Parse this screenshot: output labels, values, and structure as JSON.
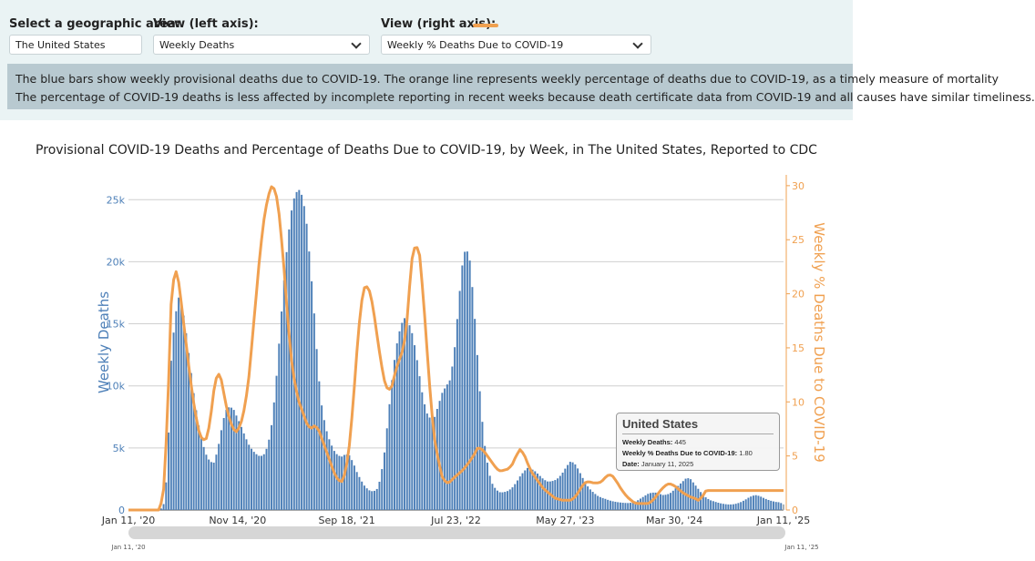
{
  "controls": {
    "geo_label": "Select a geographic area:",
    "geo_value": "The United States",
    "left_label": "View (left axis):",
    "left_value": "Weekly Deaths",
    "right_label": "View (right axis):",
    "right_value": "Weekly % Deaths Due to COVID-19",
    "line_color": "#f0a050"
  },
  "note": {
    "line1": "The blue bars show weekly provisional deaths due to COVID-19. The orange line represents weekly percentage of deaths due to COVID-19, as a timely measure of mortality",
    "line2": "The percentage of COVID-19 deaths is less affected by incomplete reporting in recent weeks because death certificate data from COVID-19 and all causes have similar timeliness."
  },
  "tooltip": {
    "title": "United States",
    "deaths_label": "Weekly Deaths:",
    "deaths_value": "445",
    "pct_label": "Weekly % Deaths Due to COVID-19:",
    "pct_value": "1.80",
    "date_label": "Date:",
    "date_value": "January 11, 2025"
  },
  "chart_data": {
    "type": "bar",
    "title": "Provisional COVID-19 Deaths and Percentage of Deaths Due to COVID-19, by Week, in The United States, Reported to CDC",
    "ylabel": "Weekly Deaths",
    "y2label": "Weekly % Deaths Due to COVID-19",
    "ylim": [
      0,
      27000
    ],
    "y2lim": [
      0,
      31
    ],
    "yticks": [
      0,
      5000,
      10000,
      15000,
      20000,
      25000
    ],
    "ytick_labels": [
      "0",
      "5k",
      "10k",
      "15k",
      "20k",
      "25k"
    ],
    "y2ticks": [
      0,
      5,
      10,
      15,
      20,
      25,
      30
    ],
    "xtick_labels": [
      "Jan 11, '20",
      "Nov 14, '20",
      "Sep 18, '21",
      "Jul 23, '22",
      "May 27, '23",
      "Mar 30, '24",
      "Jan 11, '25"
    ],
    "range_labels": [
      "Jan 11, '20",
      "Jan 11, '25"
    ],
    "grid": true,
    "bar_color": "#4e80b8",
    "line_color": "#f0a050",
    "weeks": 262,
    "deaths_keyframes": [
      [
        0,
        0
      ],
      [
        8,
        0
      ],
      [
        9,
        300
      ],
      [
        10,
        3000
      ],
      [
        11,
        12000
      ],
      [
        12,
        15500
      ],
      [
        13,
        17200
      ],
      [
        14,
        16200
      ],
      [
        15,
        14000
      ],
      [
        16,
        11500
      ],
      [
        17,
        9000
      ],
      [
        18,
        7000
      ],
      [
        19,
        5500
      ],
      [
        20,
        4500
      ],
      [
        21,
        3900
      ],
      [
        22,
        3800
      ],
      [
        23,
        4800
      ],
      [
        24,
        6500
      ],
      [
        25,
        8000
      ],
      [
        26,
        8300
      ],
      [
        27,
        8200
      ],
      [
        28,
        7500
      ],
      [
        29,
        6800
      ],
      [
        30,
        6000
      ],
      [
        31,
        5300
      ],
      [
        32,
        4800
      ],
      [
        33,
        4500
      ],
      [
        34,
        4300
      ],
      [
        35,
        4500
      ],
      [
        36,
        5200
      ],
      [
        37,
        7000
      ],
      [
        38,
        10000
      ],
      [
        39,
        14000
      ],
      [
        40,
        18000
      ],
      [
        41,
        21500
      ],
      [
        42,
        24000
      ],
      [
        43,
        25500
      ],
      [
        44,
        25800
      ],
      [
        45,
        25200
      ],
      [
        46,
        23000
      ],
      [
        47,
        19500
      ],
      [
        48,
        15500
      ],
      [
        49,
        11000
      ],
      [
        50,
        8000
      ],
      [
        51,
        6500
      ],
      [
        52,
        5500
      ],
      [
        53,
        4800
      ],
      [
        54,
        4400
      ],
      [
        55,
        4300
      ],
      [
        56,
        4500
      ],
      [
        57,
        4400
      ],
      [
        58,
        3800
      ],
      [
        59,
        3000
      ],
      [
        60,
        2400
      ],
      [
        61,
        1900
      ],
      [
        62,
        1600
      ],
      [
        63,
        1500
      ],
      [
        64,
        1600
      ],
      [
        65,
        2500
      ],
      [
        66,
        4500
      ],
      [
        67,
        7500
      ],
      [
        68,
        10500
      ],
      [
        69,
        13000
      ],
      [
        70,
        14500
      ],
      [
        71,
        15500
      ],
      [
        72,
        15300
      ],
      [
        73,
        14500
      ],
      [
        74,
        13000
      ],
      [
        75,
        11000
      ],
      [
        76,
        9000
      ],
      [
        77,
        7800
      ],
      [
        78,
        7300
      ],
      [
        79,
        7500
      ],
      [
        80,
        8500
      ],
      [
        81,
        9500
      ],
      [
        82,
        10000
      ],
      [
        83,
        10500
      ],
      [
        84,
        12500
      ],
      [
        85,
        16000
      ],
      [
        86,
        19500
      ],
      [
        87,
        21200
      ],
      [
        88,
        20300
      ],
      [
        89,
        17000
      ],
      [
        90,
        12500
      ],
      [
        91,
        8000
      ],
      [
        92,
        5000
      ],
      [
        93,
        3000
      ],
      [
        94,
        2000
      ],
      [
        95,
        1600
      ],
      [
        96,
        1400
      ],
      [
        97,
        1450
      ],
      [
        98,
        1550
      ],
      [
        99,
        1800
      ],
      [
        100,
        2200
      ],
      [
        101,
        2700
      ],
      [
        102,
        3100
      ],
      [
        103,
        3400
      ],
      [
        104,
        3300
      ],
      [
        105,
        3100
      ],
      [
        106,
        2800
      ],
      [
        107,
        2500
      ],
      [
        108,
        2300
      ],
      [
        109,
        2300
      ],
      [
        110,
        2400
      ],
      [
        111,
        2600
      ],
      [
        112,
        3000
      ],
      [
        113,
        3500
      ],
      [
        114,
        3900
      ],
      [
        115,
        3800
      ],
      [
        116,
        3300
      ],
      [
        117,
        2700
      ],
      [
        118,
        2100
      ],
      [
        119,
        1700
      ],
      [
        120,
        1400
      ],
      [
        121,
        1150
      ],
      [
        122,
        1000
      ],
      [
        123,
        900
      ],
      [
        124,
        780
      ],
      [
        125,
        700
      ],
      [
        126,
        640
      ],
      [
        127,
        600
      ],
      [
        128,
        570
      ],
      [
        129,
        560
      ],
      [
        130,
        600
      ],
      [
        131,
        700
      ],
      [
        132,
        900
      ],
      [
        133,
        1100
      ],
      [
        134,
        1300
      ],
      [
        135,
        1400
      ],
      [
        136,
        1400
      ],
      [
        137,
        1300
      ],
      [
        138,
        1200
      ],
      [
        139,
        1250
      ],
      [
        140,
        1400
      ],
      [
        141,
        1700
      ],
      [
        142,
        2000
      ],
      [
        143,
        2300
      ],
      [
        144,
        2600
      ],
      [
        145,
        2500
      ],
      [
        146,
        2100
      ],
      [
        147,
        1700
      ],
      [
        148,
        1300
      ],
      [
        149,
        1000
      ],
      [
        150,
        800
      ],
      [
        151,
        700
      ],
      [
        152,
        600
      ],
      [
        153,
        520
      ],
      [
        154,
        470
      ],
      [
        155,
        440
      ],
      [
        156,
        460
      ],
      [
        157,
        520
      ],
      [
        158,
        640
      ],
      [
        159,
        800
      ],
      [
        160,
        1000
      ],
      [
        161,
        1150
      ],
      [
        162,
        1200
      ],
      [
        163,
        1100
      ],
      [
        164,
        950
      ],
      [
        165,
        820
      ],
      [
        166,
        720
      ],
      [
        167,
        650
      ],
      [
        168,
        620
      ],
      [
        169,
        450
      ]
    ],
    "pct_keyframes": [
      [
        0,
        0
      ],
      [
        8,
        0
      ],
      [
        9,
        1.5
      ],
      [
        10,
        8
      ],
      [
        11,
        19
      ],
      [
        12,
        22.5
      ],
      [
        13,
        21
      ],
      [
        14,
        18
      ],
      [
        15,
        15
      ],
      [
        16,
        12
      ],
      [
        17,
        9.5
      ],
      [
        18,
        7.5
      ],
      [
        19,
        6.5
      ],
      [
        20,
        6.5
      ],
      [
        21,
        8
      ],
      [
        22,
        11
      ],
      [
        23,
        12.8
      ],
      [
        24,
        12
      ],
      [
        25,
        10
      ],
      [
        26,
        8.5
      ],
      [
        27,
        7.5
      ],
      [
        28,
        7.2
      ],
      [
        29,
        8
      ],
      [
        30,
        9.5
      ],
      [
        31,
        12
      ],
      [
        32,
        16
      ],
      [
        33,
        20
      ],
      [
        34,
        24
      ],
      [
        35,
        27
      ],
      [
        36,
        29
      ],
      [
        37,
        30
      ],
      [
        38,
        29.5
      ],
      [
        39,
        27
      ],
      [
        40,
        23
      ],
      [
        41,
        18
      ],
      [
        42,
        14
      ],
      [
        43,
        11.5
      ],
      [
        44,
        10
      ],
      [
        45,
        9
      ],
      [
        46,
        8
      ],
      [
        47,
        7.5
      ],
      [
        48,
        7.8
      ],
      [
        49,
        7.5
      ],
      [
        50,
        6.5
      ],
      [
        51,
        5.5
      ],
      [
        52,
        4.5
      ],
      [
        53,
        3.5
      ],
      [
        54,
        2.8
      ],
      [
        55,
        2.6
      ],
      [
        56,
        3.5
      ],
      [
        57,
        6
      ],
      [
        58,
        10
      ],
      [
        59,
        15
      ],
      [
        60,
        19
      ],
      [
        61,
        20.8
      ],
      [
        62,
        20.5
      ],
      [
        63,
        19
      ],
      [
        64,
        16.5
      ],
      [
        65,
        14
      ],
      [
        66,
        12
      ],
      [
        67,
        11
      ],
      [
        68,
        11.5
      ],
      [
        69,
        13
      ],
      [
        70,
        14
      ],
      [
        71,
        15
      ],
      [
        72,
        18
      ],
      [
        73,
        23
      ],
      [
        74,
        24.5
      ],
      [
        75,
        24
      ],
      [
        76,
        20
      ],
      [
        77,
        15
      ],
      [
        78,
        10
      ],
      [
        79,
        6.5
      ],
      [
        80,
        4.5
      ],
      [
        81,
        3
      ],
      [
        82,
        2.5
      ],
      [
        83,
        2.6
      ],
      [
        84,
        3
      ],
      [
        85,
        3.3
      ],
      [
        86,
        3.6
      ],
      [
        87,
        4
      ],
      [
        88,
        4.5
      ],
      [
        89,
        5
      ],
      [
        90,
        5.7
      ],
      [
        91,
        5.7
      ],
      [
        92,
        5.3
      ],
      [
        93,
        4.8
      ],
      [
        94,
        4.3
      ],
      [
        95,
        3.8
      ],
      [
        96,
        3.6
      ],
      [
        97,
        3.7
      ],
      [
        98,
        3.8
      ],
      [
        99,
        4.2
      ],
      [
        100,
        5
      ],
      [
        101,
        5.6
      ],
      [
        102,
        5.2
      ],
      [
        103,
        4.3
      ],
      [
        104,
        3.5
      ],
      [
        105,
        3
      ],
      [
        106,
        2.5
      ],
      [
        107,
        2
      ],
      [
        108,
        1.7
      ],
      [
        109,
        1.4
      ],
      [
        110,
        1.1
      ],
      [
        111,
        1
      ],
      [
        112,
        0.9
      ],
      [
        113,
        0.9
      ],
      [
        114,
        0.9
      ],
      [
        115,
        1.1
      ],
      [
        116,
        1.6
      ],
      [
        117,
        2.2
      ],
      [
        118,
        2.6
      ],
      [
        119,
        2.6
      ],
      [
        120,
        2.5
      ],
      [
        121,
        2.5
      ],
      [
        122,
        2.6
      ],
      [
        123,
        3
      ],
      [
        124,
        3.3
      ],
      [
        125,
        3.1
      ],
      [
        126,
        2.6
      ],
      [
        127,
        2
      ],
      [
        128,
        1.5
      ],
      [
        129,
        1.1
      ],
      [
        130,
        0.8
      ],
      [
        131,
        0.6
      ],
      [
        132,
        0.6
      ],
      [
        133,
        0.6
      ],
      [
        134,
        0.6
      ],
      [
        135,
        0.8
      ],
      [
        136,
        1.2
      ],
      [
        137,
        1.7
      ],
      [
        138,
        2.1
      ],
      [
        139,
        2.4
      ],
      [
        140,
        2.4
      ],
      [
        141,
        2.2
      ],
      [
        142,
        1.9
      ],
      [
        143,
        1.6
      ],
      [
        144,
        1.4
      ],
      [
        145,
        1.2
      ],
      [
        146,
        1.1
      ],
      [
        147,
        0.9
      ],
      [
        148,
        1.2
      ],
      [
        149,
        1.8
      ]
    ]
  }
}
